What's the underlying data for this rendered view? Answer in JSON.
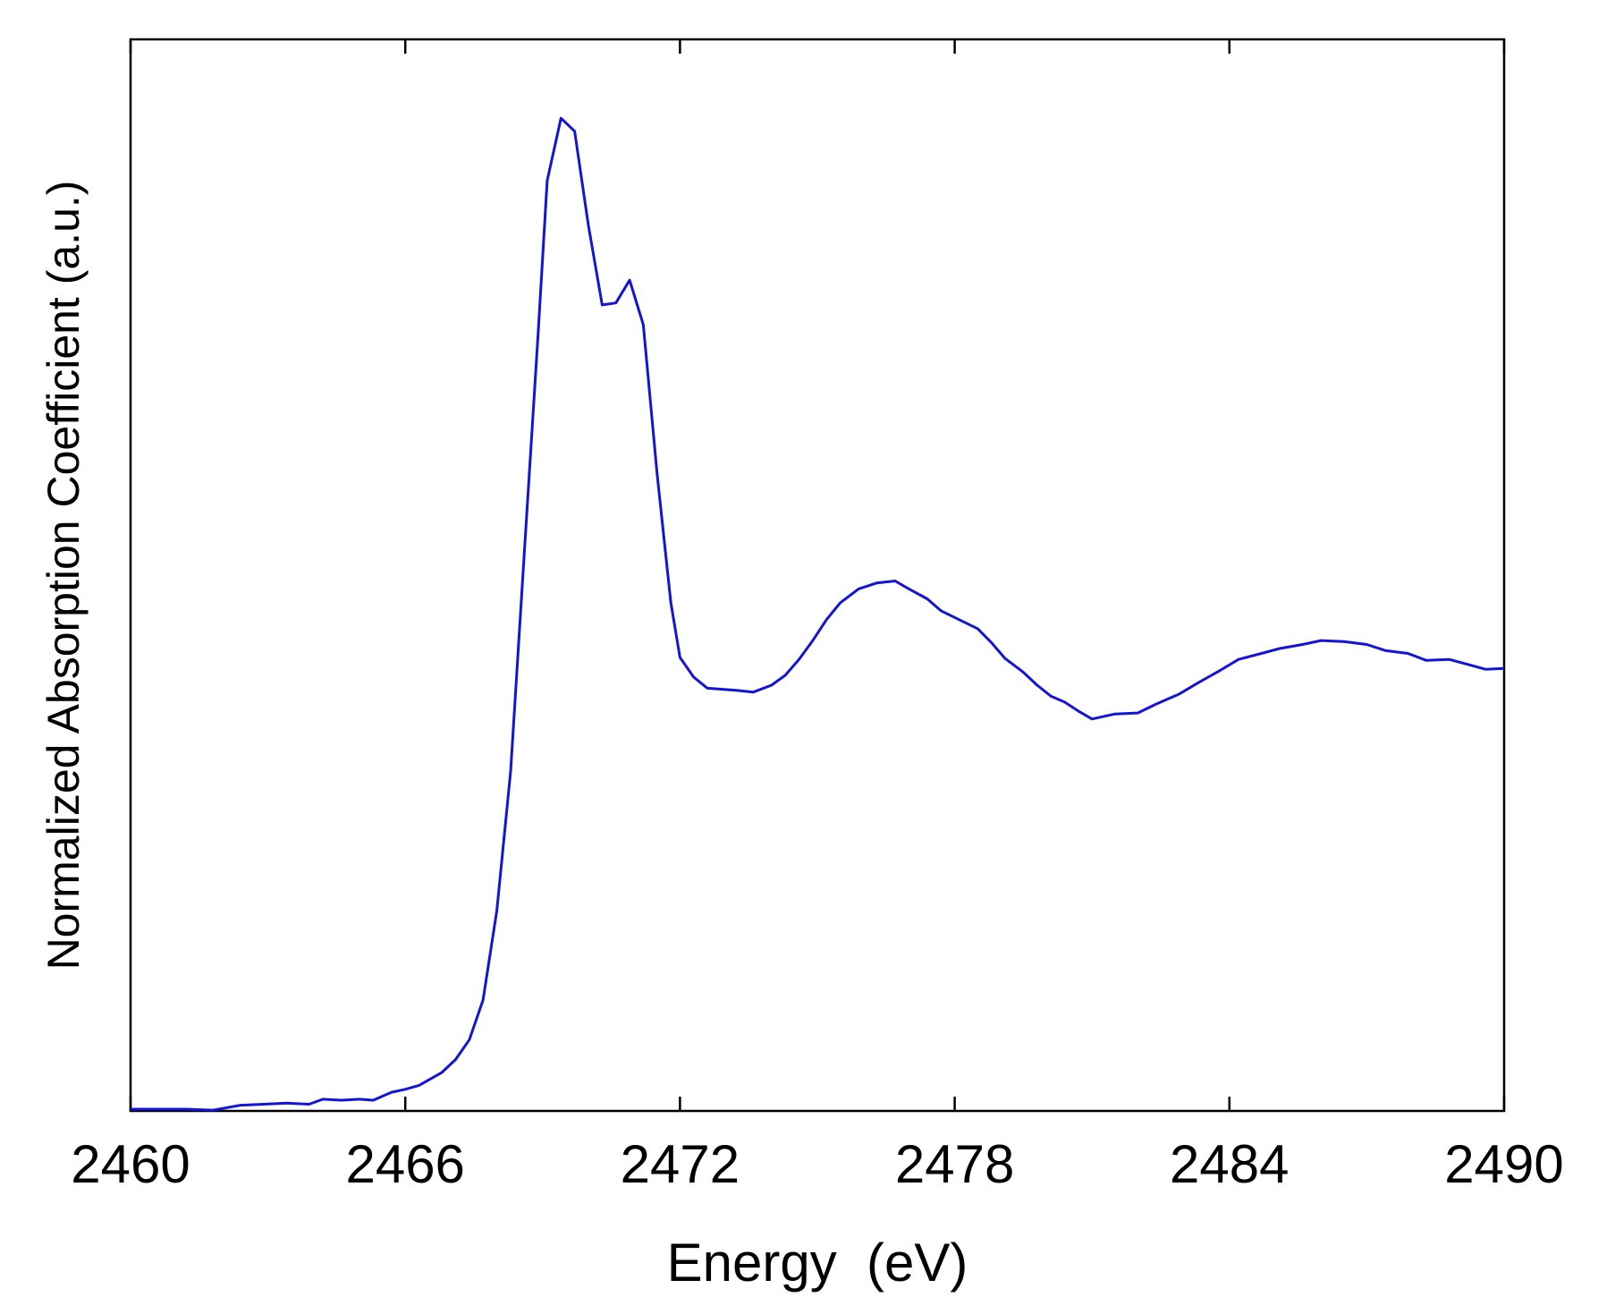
{
  "chart_data": {
    "type": "line",
    "title": "",
    "xlabel": "Energy  (eV)",
    "ylabel": "Normalized Absorption Coefficient (a.u.)",
    "xlim": [
      2460,
      2490
    ],
    "ylim": [
      0,
      1
    ],
    "xticks": [
      2460,
      2466,
      2472,
      2478,
      2484,
      2490
    ],
    "xtick_labels": [
      "2460",
      "2466",
      "2472",
      "2478",
      "2484",
      "2490"
    ],
    "yticks_labeled": false,
    "grid": false,
    "legend": "none",
    "series": [
      {
        "color": "#1414d8",
        "points": [
          [
            2460.0,
            0.0
          ],
          [
            2461.2,
            0.0
          ],
          [
            2461.8,
            -0.001
          ],
          [
            2462.4,
            0.004
          ],
          [
            2462.9,
            0.005
          ],
          [
            2463.4,
            0.006
          ],
          [
            2463.9,
            0.005
          ],
          [
            2464.2,
            0.01
          ],
          [
            2464.6,
            0.009
          ],
          [
            2465.0,
            0.01
          ],
          [
            2465.3,
            0.009
          ],
          [
            2465.7,
            0.017
          ],
          [
            2466.0,
            0.02
          ],
          [
            2466.3,
            0.024
          ],
          [
            2466.8,
            0.037
          ],
          [
            2467.1,
            0.05
          ],
          [
            2467.4,
            0.07
          ],
          [
            2467.7,
            0.11
          ],
          [
            2468.0,
            0.2
          ],
          [
            2468.3,
            0.34
          ],
          [
            2468.6,
            0.56
          ],
          [
            2468.9,
            0.78
          ],
          [
            2469.1,
            0.935
          ],
          [
            2469.4,
            0.998
          ],
          [
            2469.7,
            0.985
          ],
          [
            2470.0,
            0.89
          ],
          [
            2470.3,
            0.81
          ],
          [
            2470.6,
            0.812
          ],
          [
            2470.9,
            0.835
          ],
          [
            2471.2,
            0.79
          ],
          [
            2471.5,
            0.64
          ],
          [
            2471.8,
            0.51
          ],
          [
            2472.0,
            0.455
          ],
          [
            2472.3,
            0.435
          ],
          [
            2472.6,
            0.424
          ],
          [
            2473.2,
            0.422
          ],
          [
            2473.6,
            0.42
          ],
          [
            2474.0,
            0.427
          ],
          [
            2474.3,
            0.437
          ],
          [
            2474.6,
            0.453
          ],
          [
            2474.9,
            0.472
          ],
          [
            2475.2,
            0.493
          ],
          [
            2475.5,
            0.51
          ],
          [
            2475.9,
            0.524
          ],
          [
            2476.3,
            0.53
          ],
          [
            2476.7,
            0.532
          ],
          [
            2477.0,
            0.524
          ],
          [
            2477.4,
            0.514
          ],
          [
            2477.7,
            0.502
          ],
          [
            2478.1,
            0.493
          ],
          [
            2478.5,
            0.484
          ],
          [
            2478.8,
            0.47
          ],
          [
            2479.1,
            0.454
          ],
          [
            2479.5,
            0.44
          ],
          [
            2479.8,
            0.427
          ],
          [
            2480.1,
            0.416
          ],
          [
            2480.4,
            0.41
          ],
          [
            2480.7,
            0.401
          ],
          [
            2481.0,
            0.393
          ],
          [
            2481.5,
            0.398
          ],
          [
            2482.0,
            0.399
          ],
          [
            2482.4,
            0.408
          ],
          [
            2482.9,
            0.418
          ],
          [
            2483.3,
            0.429
          ],
          [
            2483.8,
            0.442
          ],
          [
            2484.2,
            0.453
          ],
          [
            2484.7,
            0.459
          ],
          [
            2485.1,
            0.464
          ],
          [
            2485.6,
            0.468
          ],
          [
            2486.0,
            0.472
          ],
          [
            2486.5,
            0.471
          ],
          [
            2487.0,
            0.468
          ],
          [
            2487.4,
            0.462
          ],
          [
            2487.9,
            0.459
          ],
          [
            2488.3,
            0.452
          ],
          [
            2488.8,
            0.453
          ],
          [
            2489.2,
            0.448
          ],
          [
            2489.6,
            0.443
          ],
          [
            2490.0,
            0.444
          ]
        ]
      }
    ]
  }
}
